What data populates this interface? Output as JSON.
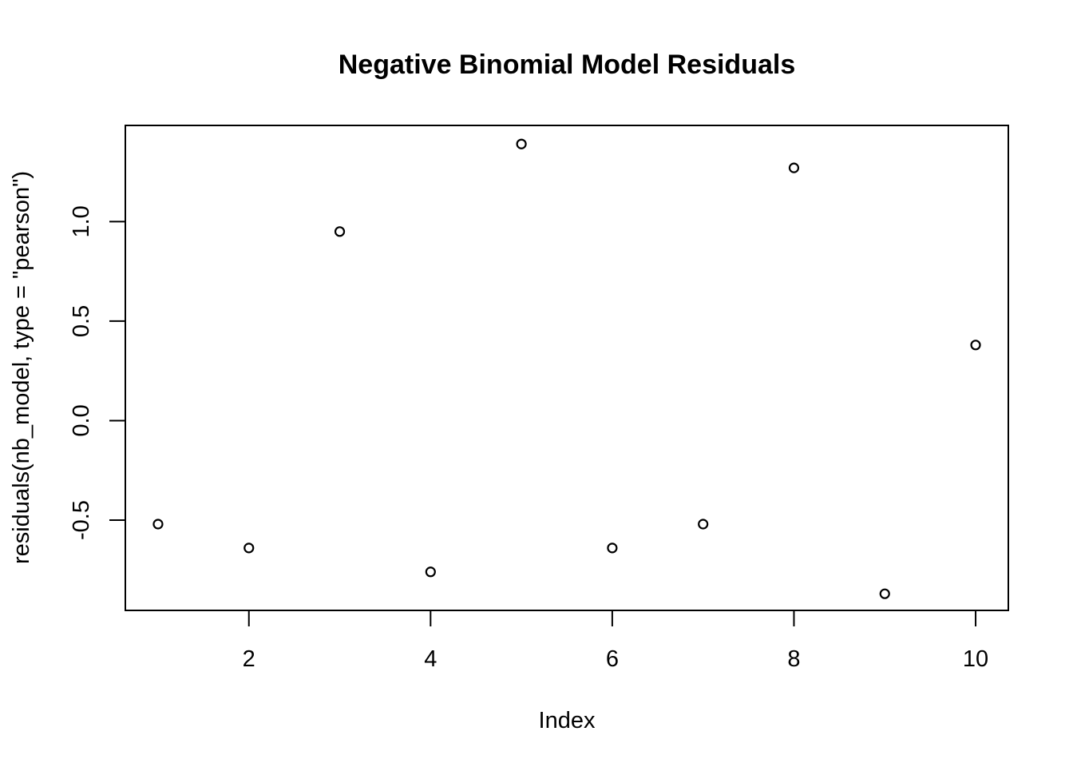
{
  "chart_data": {
    "type": "scatter",
    "title": "Negative Binomial Model Residuals",
    "xlabel": "Index",
    "ylabel": "residuals(nb_model, type = \"pearson\")",
    "x": [
      1,
      2,
      3,
      4,
      5,
      6,
      7,
      8,
      9,
      10
    ],
    "y": [
      -0.52,
      -0.64,
      0.95,
      -0.76,
      1.39,
      -0.64,
      -0.52,
      1.27,
      -0.87,
      0.38
    ],
    "xlim": [
      0.64,
      10.36
    ],
    "ylim": [
      -0.9536,
      1.4832
    ],
    "x_ticks": [
      2,
      4,
      6,
      8,
      10
    ],
    "y_ticks": [
      -0.5,
      0.0,
      0.5,
      1.0
    ],
    "x_tick_labels": [
      "2",
      "4",
      "6",
      "8",
      "10"
    ],
    "y_tick_labels": [
      "-0.5",
      "0.0",
      "0.5",
      "1.0"
    ],
    "grid": false,
    "legend": "none",
    "marker": "open-circle",
    "colors": {
      "point": "#000000",
      "frame": "#000000",
      "background": "#ffffff"
    }
  }
}
